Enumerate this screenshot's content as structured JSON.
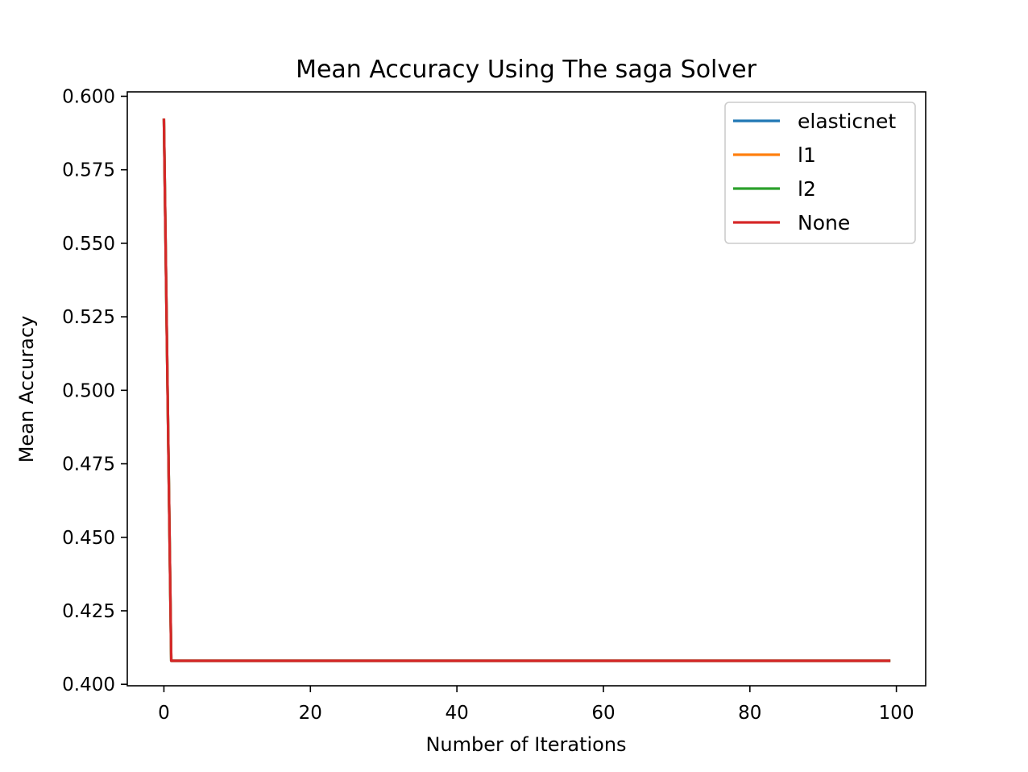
{
  "chart_data": {
    "type": "line",
    "title": "Mean Accuracy Using The saga Solver",
    "xlabel": "Number of Iterations",
    "ylabel": "Mean Accuracy",
    "xlim": [
      -5,
      104
    ],
    "ylim": [
      0.3995,
      0.6015
    ],
    "xticks": [
      0,
      20,
      40,
      60,
      80,
      100
    ],
    "yticks": [
      0.4,
      0.425,
      0.45,
      0.475,
      0.5,
      0.525,
      0.55,
      0.575,
      0.6
    ],
    "ytick_format_decimals": 3,
    "grid": false,
    "legend": "top-right",
    "x_start": 0,
    "x_end": 99,
    "series": [
      {
        "name": "elasticnet",
        "color": "#1f77b4",
        "start_value": 0.592,
        "plateau_value": 0.408
      },
      {
        "name": "l1",
        "color": "#ff7f0e",
        "start_value": 0.592,
        "plateau_value": 0.408
      },
      {
        "name": "l2",
        "color": "#2ca02c",
        "start_value": 0.592,
        "plateau_value": 0.408
      },
      {
        "name": "None",
        "color": "#d62728",
        "start_value": 0.592,
        "plateau_value": 0.408
      }
    ]
  }
}
